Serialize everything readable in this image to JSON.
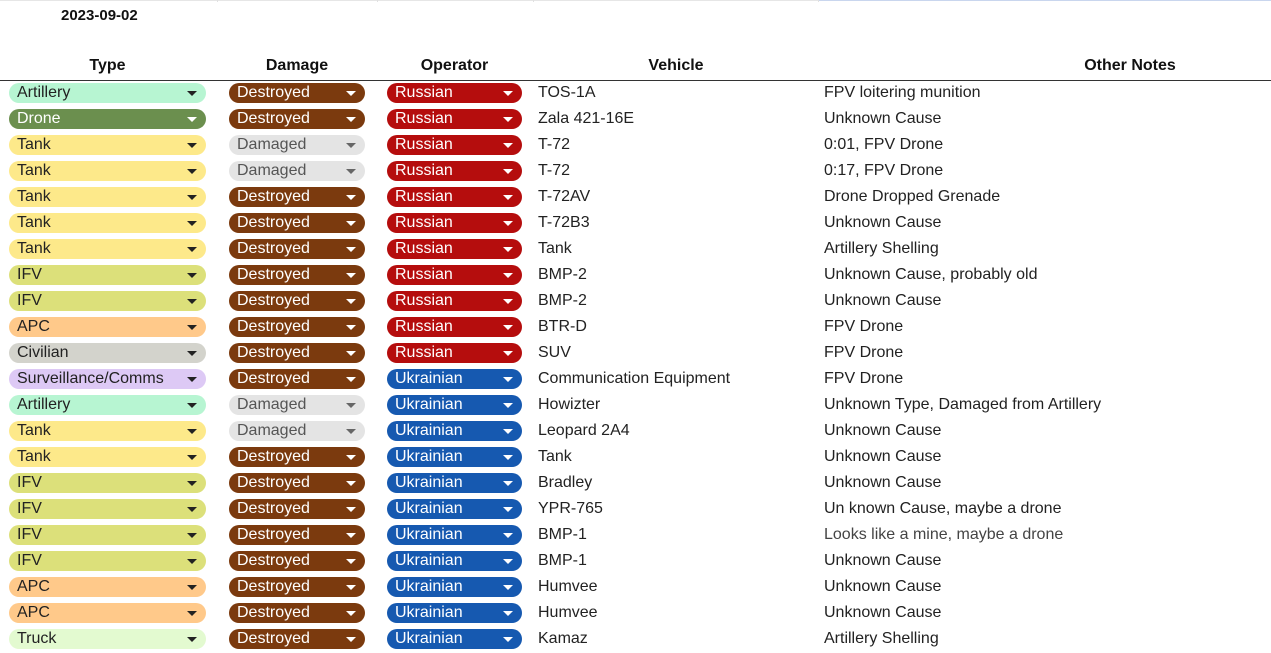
{
  "sheet": {
    "date": "2023-09-02",
    "columns": {
      "type": "Type",
      "damage": "Damage",
      "operator": "Operator",
      "vehicle": "Vehicle",
      "notes": "Other Notes"
    },
    "colors": {
      "Artillery": "#b7f5d2",
      "Drone": "#6b8f4e",
      "Tank": "#fde98a",
      "IFV": "#dce07a",
      "APC": "#ffc98a",
      "Civilian": "#d3d3cc",
      "Surveillance/Comms": "#ddc9f5",
      "Truck": "#e3fad0",
      "Destroyed": "#7b3a0e",
      "Damaged": "#e4e4e4",
      "Russian": "#b50d0d",
      "Ukrainian": "#1659b0"
    },
    "dropdown_icon": "triangle-down-icon",
    "rows": [
      {
        "type": "Artillery",
        "damage": "Destroyed",
        "operator": "Russian",
        "vehicle": "TOS-1A",
        "notes": "FPV loitering munition"
      },
      {
        "type": "Drone",
        "damage": "Destroyed",
        "operator": "Russian",
        "vehicle": "Zala 421-16E",
        "notes": "Unknown Cause"
      },
      {
        "type": "Tank",
        "damage": "Damaged",
        "operator": "Russian",
        "vehicle": "T-72",
        "notes": "0:01, FPV Drone"
      },
      {
        "type": "Tank",
        "damage": "Damaged",
        "operator": "Russian",
        "vehicle": "T-72",
        "notes": "0:17, FPV Drone"
      },
      {
        "type": "Tank",
        "damage": "Destroyed",
        "operator": "Russian",
        "vehicle": "T-72AV",
        "notes": "Drone Dropped Grenade"
      },
      {
        "type": "Tank",
        "damage": "Destroyed",
        "operator": "Russian",
        "vehicle": "T-72B3",
        "notes": "Unknown Cause"
      },
      {
        "type": "Tank",
        "damage": "Destroyed",
        "operator": "Russian",
        "vehicle": "Tank",
        "notes": "Artillery Shelling"
      },
      {
        "type": "IFV",
        "damage": "Destroyed",
        "operator": "Russian",
        "vehicle": "BMP-2",
        "notes": "Unknown Cause, probably old"
      },
      {
        "type": "IFV",
        "damage": "Destroyed",
        "operator": "Russian",
        "vehicle": "BMP-2",
        "notes": "Unknown Cause"
      },
      {
        "type": "APC",
        "damage": "Destroyed",
        "operator": "Russian",
        "vehicle": "BTR-D",
        "notes": "FPV Drone"
      },
      {
        "type": "Civilian",
        "damage": "Destroyed",
        "operator": "Russian",
        "vehicle": "SUV",
        "notes": "FPV Drone"
      },
      {
        "type": "Surveillance/Comms",
        "damage": "Destroyed",
        "operator": "Ukrainian",
        "vehicle": "Communication Equipment",
        "notes": "FPV Drone"
      },
      {
        "type": "Artillery",
        "damage": "Damaged",
        "operator": "Ukrainian",
        "vehicle": "Howizter",
        "notes": "Unknown Type, Damaged from Artillery"
      },
      {
        "type": "Tank",
        "damage": "Damaged",
        "operator": "Ukrainian",
        "vehicle": "Leopard 2A4",
        "notes": "Unknown Cause"
      },
      {
        "type": "Tank",
        "damage": "Destroyed",
        "operator": "Ukrainian",
        "vehicle": "Tank",
        "notes": "Unknown Cause"
      },
      {
        "type": "IFV",
        "damage": "Destroyed",
        "operator": "Ukrainian",
        "vehicle": "Bradley",
        "notes": "Unknown Cause"
      },
      {
        "type": "IFV",
        "damage": "Destroyed",
        "operator": "Ukrainian",
        "vehicle": "YPR-765",
        "notes": "Un known Cause, maybe a drone"
      },
      {
        "type": "IFV",
        "damage": "Destroyed",
        "operator": "Ukrainian",
        "vehicle": "BMP-1",
        "notes": "Looks like a mine, maybe a drone"
      },
      {
        "type": "IFV",
        "damage": "Destroyed",
        "operator": "Ukrainian",
        "vehicle": "BMP-1",
        "notes": "Unknown Cause"
      },
      {
        "type": "APC",
        "damage": "Destroyed",
        "operator": "Ukrainian",
        "vehicle": "Humvee",
        "notes": "Unknown Cause"
      },
      {
        "type": "APC",
        "damage": "Destroyed",
        "operator": "Ukrainian",
        "vehicle": "Humvee",
        "notes": "Unknown Cause"
      },
      {
        "type": "Truck",
        "damage": "Destroyed",
        "operator": "Ukrainian",
        "vehicle": "Kamaz",
        "notes": "Artillery Shelling"
      }
    ]
  }
}
